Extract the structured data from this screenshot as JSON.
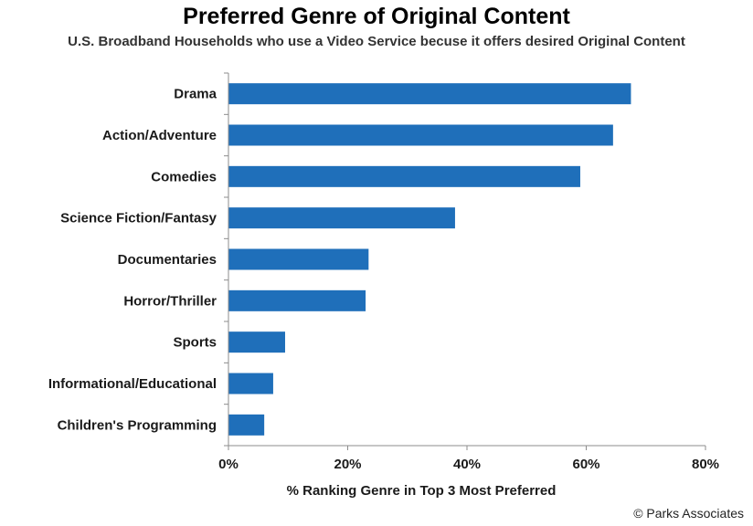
{
  "title": "Preferred Genre of Original Content",
  "subtitle": "U.S. Broadband Households who use a Video Service becuse it offers desired Original Content",
  "credit": "© Parks Associates",
  "colors": {
    "bar": "#1f6fba",
    "axis": "#8c8c8c",
    "text": "#1a1a1a"
  },
  "chart_data": {
    "type": "bar",
    "orientation": "horizontal",
    "categories": [
      "Drama",
      "Action/Adventure",
      "Comedies",
      "Science Fiction/Fantasy",
      "Documentaries",
      "Horror/Thriller",
      "Sports",
      "Informational/Educational",
      "Children's Programming"
    ],
    "values": [
      67.5,
      64.5,
      59,
      38,
      23.5,
      23,
      9.5,
      7.5,
      6
    ],
    "xlabel": "% Ranking Genre in Top 3 Most Preferred",
    "ylabel": "",
    "xlim": [
      0,
      80
    ],
    "ticks": [
      0,
      20,
      40,
      60,
      80
    ],
    "tick_labels": [
      "0%",
      "20%",
      "40%",
      "60%",
      "80%"
    ],
    "grid": false,
    "legend": "none"
  }
}
